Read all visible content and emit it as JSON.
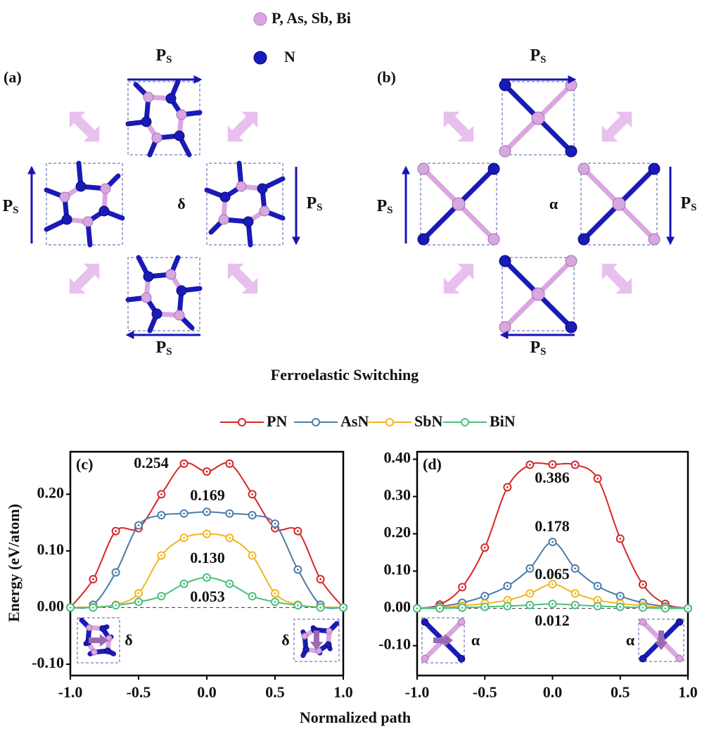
{
  "figure": {
    "atom_legend": [
      "P, As, Sb, Bi",
      "N"
    ],
    "panels": [
      {
        "label": "(a)",
        "phase": "δ"
      },
      {
        "label": "(b)",
        "phase": "α"
      }
    ],
    "polarization": "P",
    "polarization_subscript": "S",
    "caption": "Ferroelastic Switching",
    "ylabel": "Energy (eV/atom)",
    "xlabel": "Normalized path"
  },
  "chart_data": [
    {
      "type": "line",
      "panel_label": "(c)",
      "x": [
        -1,
        -0.833,
        -0.667,
        -0.5,
        -0.333,
        -0.167,
        0,
        0.167,
        0.333,
        0.5,
        0.667,
        0.833,
        1
      ],
      "series": [
        {
          "name": "PN",
          "color": "#d62728",
          "values": [
            0,
            0.05,
            0.135,
            0.14,
            0.2,
            0.254,
            0.24,
            0.254,
            0.2,
            0.14,
            0.135,
            0.05,
            0
          ]
        },
        {
          "name": "AsN",
          "color": "#4a7ca8",
          "values": [
            0,
            0.005,
            0.062,
            0.145,
            0.163,
            0.166,
            0.169,
            0.166,
            0.163,
            0.148,
            0.067,
            0.005,
            0
          ]
        },
        {
          "name": "SbN",
          "color": "#f2b51f",
          "values": [
            0,
            0.001,
            0.005,
            0.025,
            0.092,
            0.123,
            0.13,
            0.123,
            0.092,
            0.025,
            0.005,
            0.001,
            0
          ]
        },
        {
          "name": "BiN",
          "color": "#4cbf7a",
          "values": [
            0,
            0,
            0.004,
            0.01,
            0.02,
            0.042,
            0.053,
            0.042,
            0.02,
            0.01,
            0.004,
            0,
            0
          ]
        }
      ],
      "annotations": [
        "0.254",
        "0.169",
        "0.130",
        "0.053"
      ],
      "inset_labels": [
        "δ",
        "δ"
      ],
      "reference_line": 0,
      "xlim": [
        -1,
        1
      ],
      "xticks": [
        {
          "value": -1,
          "label": "-1.0"
        },
        {
          "value": -0.5,
          "label": "-0.5"
        },
        {
          "value": 0,
          "label": "0.0"
        },
        {
          "value": 0.5,
          "label": "0.5"
        },
        {
          "value": 1,
          "label": "1.0"
        }
      ],
      "ylim": [
        -0.12,
        0.275
      ],
      "yticks": [
        {
          "value": -0.1,
          "label": "-0.10"
        },
        {
          "value": 0,
          "label": "0.00"
        },
        {
          "value": 0.1,
          "label": "0.10"
        },
        {
          "value": 0.2,
          "label": "0.20"
        }
      ]
    },
    {
      "type": "line",
      "panel_label": "(d)",
      "x": [
        -1,
        -0.833,
        -0.667,
        -0.5,
        -0.333,
        -0.167,
        0,
        0.167,
        0.333,
        0.5,
        0.667,
        0.833,
        1
      ],
      "series": [
        {
          "color": "#d62728",
          "values": [
            0,
            0.01,
            0.057,
            0.163,
            0.325,
            0.385,
            0.386,
            0.385,
            0.348,
            0.187,
            0.064,
            0.012,
            0
          ]
        },
        {
          "color": "#4a7ca8",
          "values": [
            0,
            0.005,
            0.015,
            0.033,
            0.06,
            0.107,
            0.178,
            0.107,
            0.06,
            0.033,
            0.015,
            0.005,
            0
          ]
        },
        {
          "color": "#f2b51f",
          "values": [
            0,
            0.002,
            0.007,
            0.013,
            0.022,
            0.04,
            0.065,
            0.04,
            0.022,
            0.013,
            0.007,
            0.002,
            0
          ]
        },
        {
          "color": "#4cbf7a",
          "values": [
            0,
            0,
            0.002,
            0.004,
            0.006,
            0.009,
            0.012,
            0.009,
            0.006,
            0.004,
            0.002,
            0,
            0
          ]
        }
      ],
      "annotations": [
        "0.386",
        "0.178",
        "0.065",
        "0.012"
      ],
      "inset_labels": [
        "α",
        "α"
      ],
      "reference_line": 0,
      "xlim": [
        -1,
        1
      ],
      "xticks": [
        {
          "value": -1,
          "label": "-1.0"
        },
        {
          "value": -0.5,
          "label": "-0.5"
        },
        {
          "value": 0,
          "label": "0.0"
        },
        {
          "value": 0.5,
          "label": "0.5"
        },
        {
          "value": 1,
          "label": "1.0"
        }
      ],
      "ylim": [
        -0.18,
        0.42
      ],
      "yticks": [
        {
          "value": -0.1,
          "label": "-0.10"
        },
        {
          "value": 0,
          "label": "0.00"
        },
        {
          "value": 0.1,
          "label": "0.10"
        },
        {
          "value": 0.2,
          "label": "0.20"
        },
        {
          "value": 0.3,
          "label": "0.30"
        },
        {
          "value": 0.4,
          "label": "0.40"
        }
      ]
    }
  ]
}
